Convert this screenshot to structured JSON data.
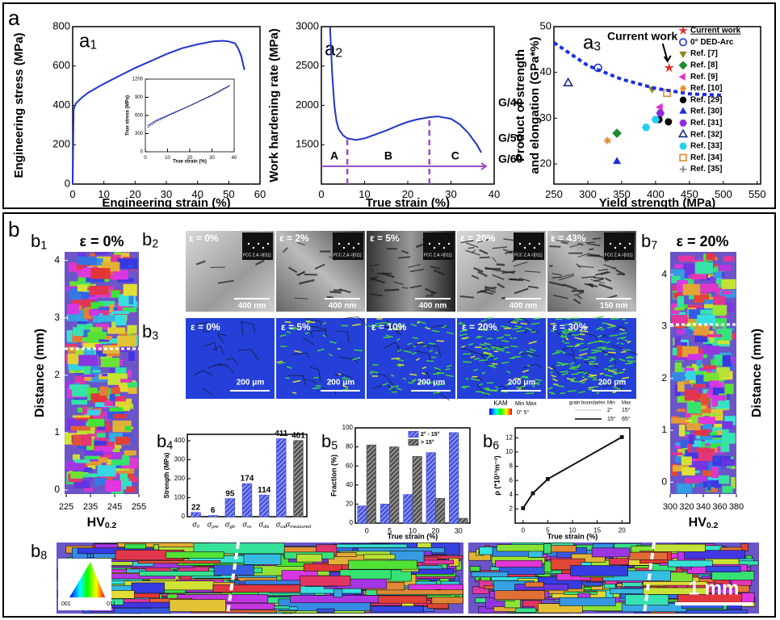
{
  "figure": {
    "label_a": "a",
    "label_b": "b"
  },
  "chart_data": [
    {
      "type": "line",
      "panel": "a1",
      "xlabel": "Engineering strain (%)",
      "ylabel": "Engineering stress (MPa)",
      "xlim": [
        0,
        60
      ],
      "ylim": [
        0,
        800
      ],
      "xticks": [
        0,
        10,
        20,
        30,
        40,
        50,
        60
      ],
      "yticks": [
        0,
        200,
        400,
        600,
        800
      ],
      "x": [
        0,
        0.3,
        1,
        3,
        5,
        10,
        15,
        20,
        25,
        30,
        35,
        40,
        45,
        48,
        50,
        52,
        53,
        54,
        55
      ],
      "series": [
        {
          "color": "#2233cc",
          "values": [
            0,
            380,
            410,
            440,
            465,
            510,
            550,
            590,
            625,
            660,
            690,
            710,
            725,
            728,
            725,
            715,
            690,
            650,
            580
          ]
        }
      ]
    },
    {
      "type": "line",
      "xlabel": "True strain (%)",
      "ylabel": "True stress (MPa)",
      "xlim": [
        0,
        40
      ],
      "ylim": [
        0,
        1200
      ],
      "xticks": [
        0,
        10,
        20,
        30,
        40
      ],
      "yticks": [
        0,
        300,
        600,
        900,
        1200
      ],
      "x": [
        1,
        5,
        10,
        20,
        30,
        38
      ],
      "series": [
        {
          "color": "#2233cc",
          "values": [
            430,
            520,
            600,
            760,
            930,
            1090
          ]
        },
        {
          "color": "#111111",
          "style": "dotted",
          "values": [
            400,
            500,
            590,
            760,
            940,
            1100
          ]
        }
      ]
    },
    {
      "type": "line",
      "panel": "a2",
      "xlabel": "True strain (%)",
      "ylabel": "Work hardening rate (MPa)",
      "xlim": [
        0,
        40
      ],
      "ylim": [
        1000,
        3000
      ],
      "xticks": [
        0,
        10,
        20,
        30,
        40
      ],
      "yticks": [
        1500,
        2000,
        2500,
        3000
      ],
      "x": [
        2,
        2.5,
        3,
        3.5,
        4,
        5,
        6,
        8,
        10,
        12,
        15,
        18,
        20,
        22,
        25,
        27,
        30,
        32,
        34,
        36,
        37
      ],
      "series": [
        {
          "color": "#2233cc",
          "values": [
            3000,
            2400,
            2000,
            1800,
            1700,
            1620,
            1580,
            1560,
            1580,
            1620,
            1680,
            1750,
            1790,
            1820,
            1850,
            1860,
            1830,
            1760,
            1650,
            1500,
            1400
          ]
        }
      ],
      "stage_bounds": [
        6,
        25
      ],
      "stages": [
        "A",
        "B",
        "C"
      ],
      "right_labels": [
        "G/40",
        "G/50",
        "G/60"
      ],
      "stage_color": "#9a4fc0"
    },
    {
      "type": "scatter",
      "panel": "a3",
      "xlabel": "Yield strength (MPa)",
      "ylabel": [
        "Product of strength",
        "and elongation (GPa*%)"
      ],
      "xlim": [
        250,
        555
      ],
      "ylim": [
        15.6,
        50
      ],
      "xticks": [
        250,
        300,
        350,
        400,
        450,
        500,
        550
      ],
      "yticks": [
        20,
        30,
        40,
        50
      ],
      "annotation": "Current work",
      "series": [
        {
          "name": "Current work",
          "color": "#e8262a",
          "marker": "star",
          "x": [
            420
          ],
          "values": [
            41
          ]
        },
        {
          "name": "0° DED-Arc",
          "color": "#2233cc",
          "marker": "circle-open",
          "x": [
            315
          ],
          "values": [
            41
          ]
        },
        {
          "name": "Ref. [7]",
          "color": "#8a8a20",
          "marker": "tri-down",
          "x": [
            395
          ],
          "values": [
            36.4
          ]
        },
        {
          "name": "Ref. [8]",
          "color": "#1e8a2e",
          "marker": "diamond",
          "x": [
            343
          ],
          "values": [
            26.7
          ]
        },
        {
          "name": "Ref. [9]",
          "color": "#e030d0",
          "marker": "tri-left",
          "x": [
            407
          ],
          "values": [
            32.4
          ]
        },
        {
          "name": "Ref. [10]",
          "color": "#e08a30",
          "marker": "asterisk",
          "x": [
            329
          ],
          "values": [
            25.1
          ]
        },
        {
          "name": "Ref. [29]",
          "color": "#000000",
          "marker": "circle",
          "x": [
            405,
            419
          ],
          "values": [
            29.7,
            29.2
          ]
        },
        {
          "name": "Ref. [30]",
          "color": "#1a2ee0",
          "marker": "tri-up",
          "x": [
            343
          ],
          "values": [
            20.5
          ]
        },
        {
          "name": "Ref. [31]",
          "color": "#8a2be2",
          "marker": "hexagon",
          "x": [
            407
          ],
          "values": [
            31.1
          ]
        },
        {
          "name": "Ref. [32]",
          "color": "#1a2a80",
          "marker": "tri-half",
          "x": [
            271
          ],
          "values": [
            37.6
          ]
        },
        {
          "name": "Ref. [33]",
          "color": "#20d0f0",
          "marker": "hexagon",
          "x": [
            386,
            400
          ],
          "values": [
            28,
            29.7
          ]
        },
        {
          "name": "Ref. [34]",
          "color": "#e08a30",
          "marker": "square-open",
          "x": [
            417
          ],
          "values": [
            35.5
          ]
        },
        {
          "name": "Ref. [35]",
          "color": "#777777",
          "marker": "plus",
          "x": [],
          "values": []
        },
        {
          "color": "#1a2ee0",
          "style": "dotted",
          "x": [
            250,
            300,
            350,
            400,
            450,
            500
          ],
          "values": [
            46.5,
            41.5,
            38.5,
            36.5,
            35.3,
            35
          ]
        }
      ]
    },
    {
      "type": "bar",
      "panel": "b4",
      "ylabel": "Strength (MPa)",
      "ylim": [
        0,
        434
      ],
      "yticks": [
        0,
        100,
        200,
        300,
        400
      ],
      "show_values": true,
      "categories": [
        "σ0",
        "σpre",
        "σgb",
        "σss",
        "σdis",
        "σcal",
        "σmeasured"
      ],
      "values": [
        22,
        6,
        95,
        174,
        114,
        411,
        401
      ],
      "colors": [
        "#4a55e0",
        "#4a55e0",
        "#4a55e0",
        "#4a55e0",
        "#4a55e0",
        "#4a55e0",
        "#555555"
      ]
    },
    {
      "type": "bar",
      "panel": "b5",
      "xlabel": "True strain (%)",
      "ylabel": "Fraction (%)",
      "ylim": [
        0,
        100
      ],
      "yticks": [
        0,
        20,
        40,
        60,
        80,
        100
      ],
      "categories": [
        "0",
        "5",
        "10",
        "20",
        "30"
      ],
      "series": [
        {
          "name": "2° - 15°",
          "color": "#4a55e0",
          "values": [
            18,
            20,
            30,
            74,
            95
          ]
        },
        {
          "name": "> 15°",
          "color": "#555555",
          "values": [
            82,
            80,
            70,
            26,
            5
          ]
        }
      ]
    },
    {
      "type": "line",
      "panel": "b6",
      "xlabel": "True strain (%)",
      "ylabel": "ρ (*10¹³m⁻²)",
      "xlim": [
        -1.6,
        21.6
      ],
      "ylim": [
        0,
        13.4
      ],
      "xticks": [
        0,
        5,
        10,
        15,
        20
      ],
      "yticks": [
        2,
        4,
        6,
        8,
        10,
        12
      ],
      "x": [
        0,
        2,
        5,
        20
      ],
      "series": [
        {
          "color": "#111111",
          "marker": "square",
          "values": [
            2.1,
            4.2,
            6.2,
            12.1
          ]
        }
      ]
    }
  ],
  "maps": [
    {
      "panel": "b1",
      "strain": "ε = 0%",
      "ylabel": "Distance (mm)",
      "ylim": [
        -0.07,
        4.15
      ],
      "yticks": [
        0,
        1,
        2,
        3,
        4
      ],
      "xlim": [
        224.3,
        255
      ],
      "xticks": [
        225,
        235,
        245,
        255
      ],
      "xlabel": "HV0.2"
    },
    {
      "panel": "b7",
      "strain": "ε = 20%",
      "ylabel": "Distance (mm)",
      "ylim": [
        -0.23,
        4.44
      ],
      "yticks": [
        0,
        1,
        2,
        3,
        4
      ],
      "xlim": [
        300,
        380
      ],
      "xticks": [
        300,
        320,
        340,
        360,
        380
      ],
      "xlabel": "HV0.2"
    }
  ],
  "images": {
    "b2": {
      "panel": "b2",
      "tiles": [
        {
          "strain": "ε = 0%",
          "scale": "400 nm",
          "zone": "FCC Z.A.=[011]"
        },
        {
          "strain": "ε = 2%",
          "scale": "400 nm",
          "zone": "FCC Z.A.=[011]"
        },
        {
          "strain": "ε = 5%",
          "scale": "400 nm",
          "zone": "FCC Z.A.=[011]"
        },
        {
          "strain": "ε = 20%",
          "scale": "400 nm",
          "zone": "FCC Z.A.=[011]"
        },
        {
          "strain": "ε = 43%",
          "scale": "150 nm",
          "zone": "FCC Z.A.=[011]"
        }
      ]
    },
    "b3": {
      "panel": "b3",
      "tiles": [
        {
          "strain": "ε = 0%",
          "scale": "200 μm"
        },
        {
          "strain": "ε = 5%",
          "scale": "200 μm"
        },
        {
          "strain": "ε = 10%",
          "scale": "200 μm"
        },
        {
          "strain": "ε = 20%",
          "scale": "200 μm"
        },
        {
          "strain": "ε = 30%",
          "scale": "200 μm"
        }
      ]
    },
    "kam_legend": {
      "title": "KAM",
      "minmax": "Min Max",
      "range": "0° 5°",
      "gb": "grain boundaries",
      "gb_min": "Min",
      "gb_max": "Max",
      "rows": [
        [
          "2°",
          "15°"
        ],
        [
          "15°",
          "65°"
        ]
      ]
    },
    "b8": {
      "panel": "b8",
      "ipf": [
        "111",
        "001",
        "011"
      ],
      "scale": "1 mm"
    }
  }
}
